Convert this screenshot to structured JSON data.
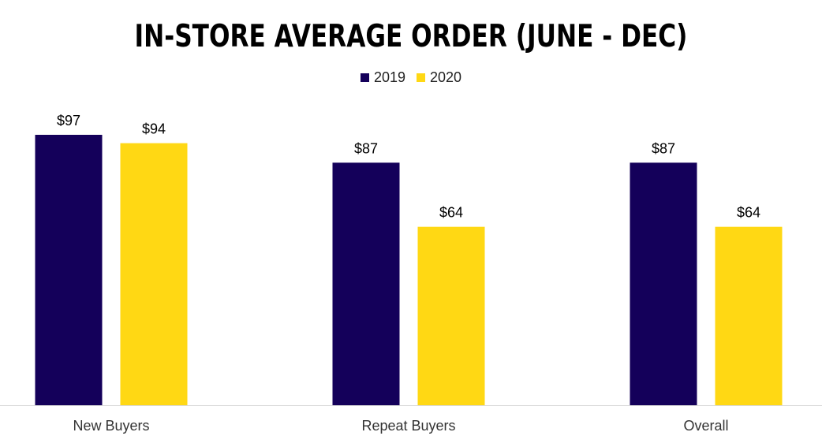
{
  "chart_data": {
    "type": "bar",
    "title": "IN-STORE AVERAGE ORDER (JUNE - DEC)",
    "categories": [
      "New Buyers",
      "Repeat Buyers",
      "Overall"
    ],
    "series": [
      {
        "name": "2019",
        "color": "#14005a",
        "values": [
          97,
          87,
          87
        ],
        "labels": [
          "$97",
          "$87",
          "$87"
        ]
      },
      {
        "name": "2020",
        "color": "#ffd814",
        "values": [
          94,
          64,
          64
        ],
        "labels": [
          "$94",
          "$64",
          "$64"
        ]
      }
    ],
    "ylim": [
      0,
      97
    ],
    "xlabel": "",
    "ylabel": "",
    "legend_position": "top-center",
    "grid": false
  }
}
